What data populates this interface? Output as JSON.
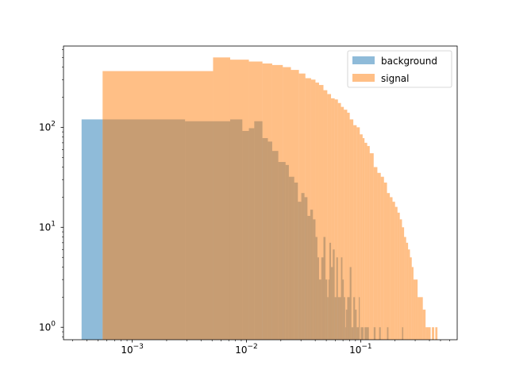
{
  "chart_data": {
    "type": "histogram",
    "x_scale": "log",
    "y_scale": "log",
    "xlim": [
      0.00025,
      0.7
    ],
    "ylim": [
      0.75,
      650
    ],
    "grid": false,
    "legend_position": "top-right",
    "x_major_ticks": [
      {
        "value": 0.001,
        "base": "10",
        "exp": "−3"
      },
      {
        "value": 0.01,
        "base": "10",
        "exp": "−2"
      },
      {
        "value": 0.1,
        "base": "10",
        "exp": "−1"
      }
    ],
    "y_major_ticks": [
      {
        "value": 1,
        "base": "10",
        "exp": "0"
      },
      {
        "value": 10,
        "base": "10",
        "exp": "1"
      },
      {
        "value": 100,
        "base": "10",
        "exp": "2"
      }
    ],
    "series": [
      {
        "name": "background",
        "color": "#1f77b4",
        "alpha": 0.5,
        "bins": [
          [
            0.00036,
            0.00055,
            120
          ],
          [
            0.00055,
            0.0029,
            120
          ],
          [
            0.0029,
            0.0051,
            115
          ],
          [
            0.0051,
            0.0072,
            115
          ],
          [
            0.0072,
            0.0092,
            120
          ],
          [
            0.0092,
            0.0105,
            92
          ],
          [
            0.0105,
            0.0117,
            98
          ],
          [
            0.0117,
            0.0138,
            115
          ],
          [
            0.0138,
            0.0154,
            78
          ],
          [
            0.0154,
            0.0168,
            72
          ],
          [
            0.0168,
            0.019,
            58
          ],
          [
            0.019,
            0.022,
            45
          ],
          [
            0.022,
            0.0235,
            42
          ],
          [
            0.0235,
            0.0262,
            32
          ],
          [
            0.0262,
            0.0282,
            28
          ],
          [
            0.0282,
            0.0302,
            18
          ],
          [
            0.0302,
            0.0322,
            22
          ],
          [
            0.0322,
            0.0342,
            20
          ],
          [
            0.0342,
            0.0362,
            13
          ],
          [
            0.0362,
            0.0382,
            15
          ],
          [
            0.0382,
            0.0402,
            12
          ],
          [
            0.0402,
            0.0418,
            8
          ],
          [
            0.0418,
            0.0432,
            5
          ],
          [
            0.0432,
            0.0452,
            3
          ],
          [
            0.0452,
            0.0472,
            5
          ],
          [
            0.0472,
            0.0492,
            8
          ],
          [
            0.0492,
            0.051,
            3
          ],
          [
            0.051,
            0.0522,
            2
          ],
          [
            0.0522,
            0.0532,
            3
          ],
          [
            0.0532,
            0.055,
            7
          ],
          [
            0.055,
            0.057,
            4
          ],
          [
            0.057,
            0.0592,
            6
          ],
          [
            0.0592,
            0.0612,
            2
          ],
          [
            0.0612,
            0.0632,
            5
          ],
          [
            0.0632,
            0.0652,
            2
          ],
          [
            0.0652,
            0.0672,
            2
          ],
          [
            0.0672,
            0.0692,
            5
          ],
          [
            0.0692,
            0.0712,
            3
          ],
          [
            0.0712,
            0.0732,
            2
          ],
          [
            0.0732,
            0.0742,
            1
          ],
          [
            0.0742,
            0.0762,
            1.5
          ],
          [
            0.0762,
            0.0802,
            2
          ],
          [
            0.0802,
            0.083,
            4
          ],
          [
            0.083,
            0.0862,
            1
          ],
          [
            0.0862,
            0.0892,
            2
          ],
          [
            0.0892,
            0.0922,
            1.5
          ],
          [
            0.0922,
            0.095,
            1
          ],
          [
            0.095,
            0.0962,
            1
          ],
          [
            0.0962,
            0.0982,
            2
          ],
          [
            0.1,
            0.106,
            1
          ],
          [
            0.108,
            0.118,
            1
          ],
          [
            0.13,
            0.135,
            1
          ],
          [
            0.145,
            0.15,
            1
          ],
          [
            0.17,
            0.175,
            1
          ],
          [
            0.23,
            0.236,
            1
          ]
        ]
      },
      {
        "name": "signal",
        "color": "#ff7f0e",
        "alpha": 0.5,
        "bins": [
          [
            0.00055,
            0.0051,
            365
          ],
          [
            0.0051,
            0.0072,
            500
          ],
          [
            0.0072,
            0.0105,
            475
          ],
          [
            0.0105,
            0.0138,
            455
          ],
          [
            0.0138,
            0.0168,
            435
          ],
          [
            0.0168,
            0.0208,
            420
          ],
          [
            0.0208,
            0.0245,
            400
          ],
          [
            0.0245,
            0.0288,
            375
          ],
          [
            0.0288,
            0.0328,
            345
          ],
          [
            0.0328,
            0.0368,
            310
          ],
          [
            0.0368,
            0.0402,
            300
          ],
          [
            0.0402,
            0.0432,
            280
          ],
          [
            0.0432,
            0.0472,
            265
          ],
          [
            0.0472,
            0.051,
            235
          ],
          [
            0.051,
            0.055,
            215
          ],
          [
            0.055,
            0.0592,
            195
          ],
          [
            0.0592,
            0.0632,
            190
          ],
          [
            0.0632,
            0.0672,
            175
          ],
          [
            0.0672,
            0.0712,
            160
          ],
          [
            0.0712,
            0.0762,
            150
          ],
          [
            0.0762,
            0.0802,
            140
          ],
          [
            0.0802,
            0.0862,
            120
          ],
          [
            0.0862,
            0.0922,
            105
          ],
          [
            0.0922,
            0.0982,
            100
          ],
          [
            0.0982,
            0.104,
            85
          ],
          [
            0.104,
            0.108,
            78
          ],
          [
            0.108,
            0.114,
            70
          ],
          [
            0.114,
            0.12,
            65
          ],
          [
            0.12,
            0.13,
            55
          ],
          [
            0.13,
            0.14,
            40
          ],
          [
            0.14,
            0.15,
            35
          ],
          [
            0.15,
            0.16,
            32
          ],
          [
            0.16,
            0.17,
            28
          ],
          [
            0.17,
            0.18,
            22
          ],
          [
            0.18,
            0.19,
            20
          ],
          [
            0.19,
            0.2,
            18
          ],
          [
            0.2,
            0.21,
            16
          ],
          [
            0.21,
            0.22,
            14
          ],
          [
            0.22,
            0.23,
            12
          ],
          [
            0.23,
            0.24,
            10
          ],
          [
            0.24,
            0.25,
            8
          ],
          [
            0.25,
            0.26,
            7
          ],
          [
            0.26,
            0.27,
            6
          ],
          [
            0.27,
            0.28,
            5
          ],
          [
            0.28,
            0.29,
            4
          ],
          [
            0.29,
            0.3,
            3
          ],
          [
            0.3,
            0.315,
            3
          ],
          [
            0.315,
            0.33,
            2
          ],
          [
            0.33,
            0.35,
            2
          ],
          [
            0.35,
            0.37,
            1.5
          ],
          [
            0.37,
            0.39,
            1
          ],
          [
            0.39,
            0.41,
            1
          ],
          [
            0.42,
            0.44,
            1
          ],
          [
            0.45,
            0.47,
            1
          ]
        ]
      }
    ]
  }
}
